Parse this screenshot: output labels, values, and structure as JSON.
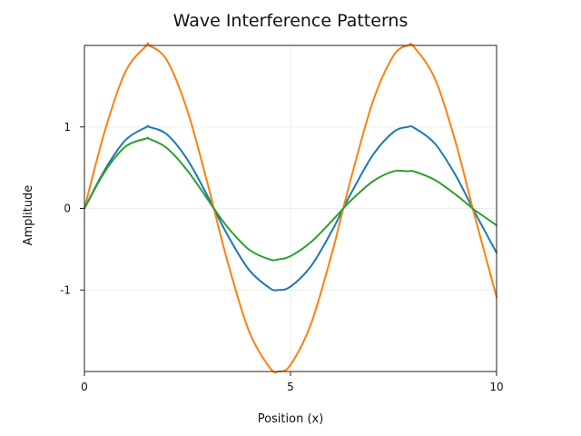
{
  "chart_data": {
    "type": "line",
    "title": "Wave Interference Patterns",
    "xlabel": "Position (x)",
    "ylabel": "Amplitude",
    "xlim": [
      0,
      10
    ],
    "ylim": [
      -2,
      2
    ],
    "x_ticks": [
      {
        "value": 0,
        "label": "0"
      },
      {
        "value": 5,
        "label": "5"
      },
      {
        "value": 10,
        "label": "10"
      }
    ],
    "y_ticks": [
      {
        "value": -1,
        "label": "-1"
      },
      {
        "value": 0,
        "label": "0"
      },
      {
        "value": 1,
        "label": "1"
      }
    ],
    "grid": true,
    "legend": "none",
    "x": [
      0,
      0.5,
      1,
      1.5,
      1.57,
      2,
      2.5,
      3,
      3.14,
      3.5,
      4,
      4.5,
      4.71,
      5,
      5.5,
      6,
      6.28,
      6.5,
      7,
      7.5,
      7.85,
      8,
      8.5,
      9,
      9.42,
      9.5,
      10
    ],
    "series": [
      {
        "color": "#1f77b4",
        "values": [
          0,
          0.479,
          0.841,
          0.997,
          1.0,
          0.909,
          0.598,
          0.141,
          0.0,
          -0.351,
          -0.757,
          -0.978,
          -1.0,
          -0.959,
          -0.706,
          -0.279,
          0.0,
          0.215,
          0.657,
          0.938,
          1.0,
          0.989,
          0.798,
          0.412,
          0.0,
          -0.075,
          -0.544
        ]
      },
      {
        "color": "#ff7f0e",
        "values": [
          0,
          0.959,
          1.683,
          1.995,
          2.0,
          1.819,
          1.197,
          0.282,
          0.0,
          -0.702,
          -1.514,
          -1.955,
          -2.0,
          -1.918,
          -1.411,
          -0.559,
          0.0,
          0.43,
          1.314,
          1.876,
          2.0,
          1.979,
          1.596,
          0.824,
          0.0,
          -0.15,
          -1.088
        ]
      },
      {
        "color": "#2ca02c",
        "values": [
          0,
          0.455,
          0.761,
          0.857,
          0.855,
          0.741,
          0.464,
          0.104,
          0.0,
          -0.246,
          -0.507,
          -0.626,
          -0.624,
          -0.585,
          -0.411,
          -0.155,
          0.0,
          0.114,
          0.333,
          0.456,
          0.456,
          0.454,
          0.351,
          0.173,
          0.0,
          -0.031,
          -0.207
        ]
      }
    ]
  }
}
